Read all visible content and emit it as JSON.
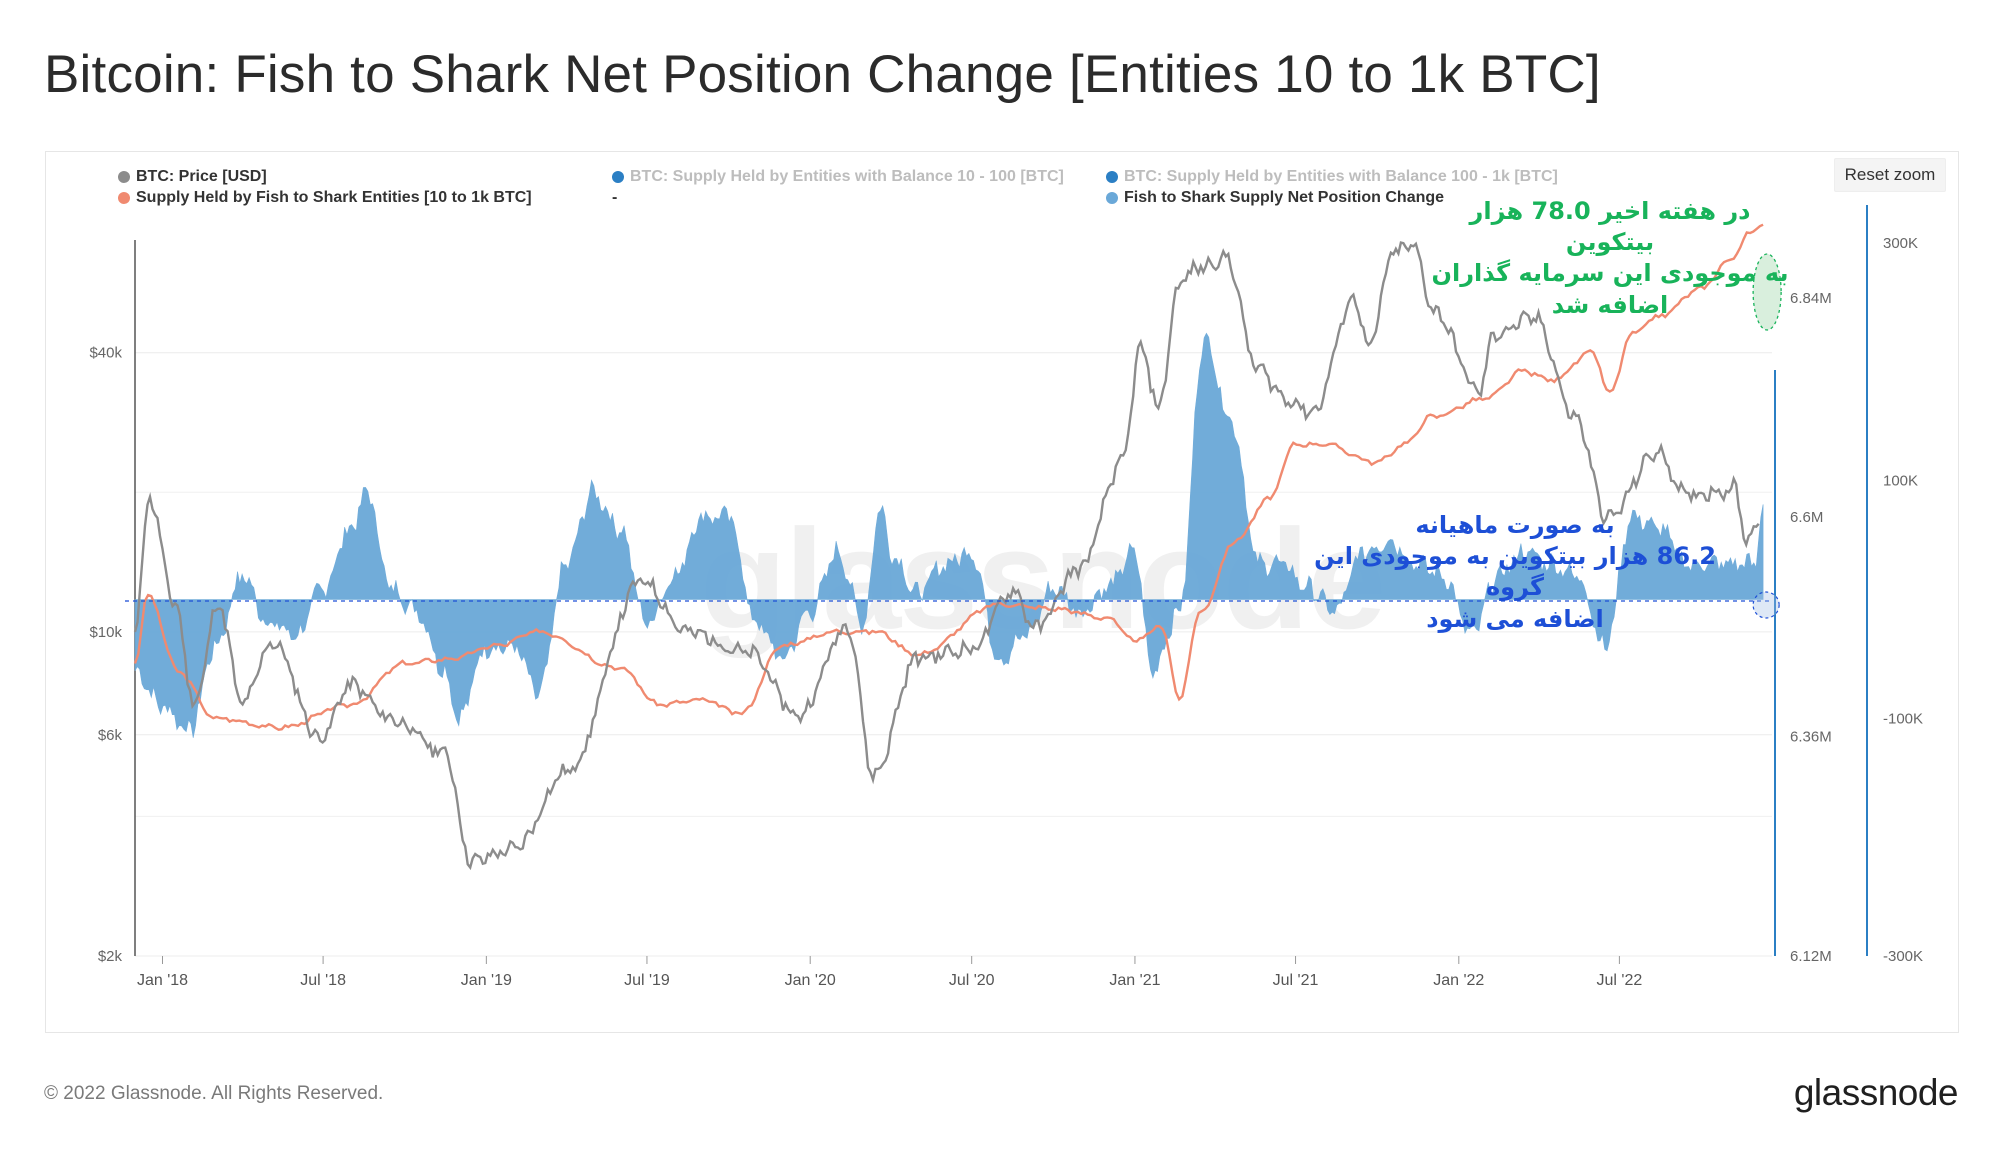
{
  "title": "Bitcoin: Fish to Shark Net Position Change [Entities 10 to 1k BTC]",
  "reset_zoom_label": "Reset zoom",
  "legend": [
    {
      "label": "BTC: Price [USD]",
      "color": "#8c8c8c",
      "dim": false
    },
    {
      "label": "BTC: Supply Held by Entities with Balance 10 - 100 [BTC]",
      "color": "#2b7fc4",
      "dim": true
    },
    {
      "label": "BTC: Supply Held by Entities with Balance 100 - 1k [BTC]",
      "color": "#2b7fc4",
      "dim": true
    },
    {
      "label": "Supply Held by Fish to Shark Entities [10 to 1k BTC]",
      "color": "#f08a70",
      "dim": false
    },
    {
      "label": "-",
      "color": "",
      "dim": false
    },
    {
      "label": "Fish to Shark Supply Net Position Change",
      "color": "#6aa8d8",
      "dim": false
    }
  ],
  "watermark": "glassnode",
  "annotations": {
    "green": [
      "در هفته اخیر  78.0 هزار بیتکوین",
      "به موجودی این سرمایه گذاران",
      "اضافه شد"
    ],
    "blue": [
      "به صورت ماهیانه",
      "86.2 هزار بیتکوین به موجودی این گروه",
      "اضافه می شود"
    ]
  },
  "footer": {
    "copyright": "© 2022 Glassnode. All Rights Reserved.",
    "logo": "glassnode"
  },
  "chart_data": {
    "type": "line",
    "x_axis": {
      "ticks": [
        "Jan '18",
        "Jul '18",
        "Jan '19",
        "Jul '19",
        "Jan '20",
        "Jul '20",
        "Jan '21",
        "Jul '21",
        "Jan '22",
        "Jul '22"
      ],
      "range": [
        "2017-12-01",
        "2022-12-20"
      ]
    },
    "y_axis_left": {
      "label": "",
      "scale": "log",
      "ticks": [
        "$40k",
        "$10k",
        "$6k",
        "$2k"
      ],
      "range": [
        2000,
        70000
      ]
    },
    "y_axis_right1": {
      "label": "",
      "ticks": [
        "6.84M",
        "6.6M",
        "6.36M",
        "6.12M"
      ],
      "range": [
        6120000,
        6900000
      ]
    },
    "y_axis_right2": {
      "label": "",
      "ticks": [
        "300K",
        "100K",
        "-100K",
        "-300K"
      ],
      "range": [
        -300000,
        300000
      ]
    },
    "colors": {
      "price": "#8c8c8c",
      "supply": "#f08a70",
      "net_change": "#6aa8d8",
      "axis": "#2b7fc4"
    },
    "series": [
      {
        "name": "BTC: Price [USD]",
        "axis": "left",
        "x": [
          "2017-12-01",
          "2017-12-17",
          "2018-01-15",
          "2018-02-06",
          "2018-03-05",
          "2018-04-01",
          "2018-05-05",
          "2018-06-28",
          "2018-08-01",
          "2018-09-15",
          "2018-11-15",
          "2018-12-15",
          "2019-02-01",
          "2019-04-02",
          "2019-06-26",
          "2019-08-15",
          "2019-10-25",
          "2019-12-18",
          "2020-02-13",
          "2020-03-12",
          "2020-05-01",
          "2020-07-01",
          "2020-08-17",
          "2020-09-10",
          "2020-11-01",
          "2020-12-17",
          "2021-01-08",
          "2021-01-27",
          "2021-02-21",
          "2021-03-13",
          "2021-04-14",
          "2021-05-19",
          "2021-06-22",
          "2021-07-20",
          "2021-09-06",
          "2021-09-21",
          "2021-10-20",
          "2021-11-10",
          "2021-12-05",
          "2022-01-24",
          "2022-02-10",
          "2022-03-28",
          "2022-05-12",
          "2022-06-18",
          "2022-08-13",
          "2022-09-15",
          "2022-10-25",
          "2022-11-08",
          "2022-11-21",
          "2022-12-05"
        ],
        "values": [
          10000,
          19500,
          11500,
          7000,
          11500,
          7000,
          9500,
          5900,
          7700,
          6500,
          5500,
          3200,
          3400,
          5000,
          12900,
          10000,
          9000,
          6600,
          10300,
          4900,
          8800,
          9200,
          12300,
          10200,
          13800,
          23000,
          41000,
          30500,
          57000,
          61000,
          64000,
          37000,
          31700,
          29800,
          52600,
          40800,
          66000,
          68000,
          49000,
          33000,
          44000,
          47500,
          29000,
          17600,
          24400,
          19700,
          20200,
          20500,
          15800,
          17100
        ]
      },
      {
        "name": "Supply Held by Fish to Shark Entities [10 to 1k BTC]",
        "axis": "right1",
        "x": [
          "2017-12-01",
          "2017-12-15",
          "2018-01-20",
          "2018-03-01",
          "2018-05-15",
          "2018-08-01",
          "2018-10-01",
          "2018-11-20",
          "2019-01-15",
          "2019-03-01",
          "2019-06-01",
          "2019-07-15",
          "2019-09-01",
          "2019-10-15",
          "2019-12-01",
          "2020-02-01",
          "2020-03-15",
          "2020-05-01",
          "2020-08-01",
          "2020-10-01",
          "2020-12-01",
          "2020-12-31",
          "2021-02-01",
          "2021-02-20",
          "2021-03-15",
          "2021-04-25",
          "2021-06-01",
          "2021-07-01",
          "2021-08-01",
          "2021-10-01",
          "2021-11-01",
          "2021-12-01",
          "2022-02-01",
          "2022-03-15",
          "2022-04-15",
          "2022-06-01",
          "2022-06-20",
          "2022-07-15",
          "2022-08-15",
          "2022-10-01",
          "2022-11-01",
          "2022-11-25",
          "2022-12-10"
        ],
        "values": [
          6440000,
          6515000,
          6430000,
          6380000,
          6370000,
          6395000,
          6440000,
          6445000,
          6460000,
          6475000,
          6435000,
          6395000,
          6400000,
          6385000,
          6460000,
          6475000,
          6475000,
          6450000,
          6505000,
          6500000,
          6490000,
          6465000,
          6480000,
          6400000,
          6495000,
          6575000,
          6620000,
          6680000,
          6680000,
          6660000,
          6680000,
          6710000,
          6730000,
          6760000,
          6750000,
          6780000,
          6735000,
          6800000,
          6820000,
          6850000,
          6880000,
          6910000,
          6920000
        ]
      },
      {
        "name": "Fish to Shark Supply Net Position Change",
        "axis": "right2",
        "x": [
          "2017-12-01",
          "2018-01-01",
          "2018-02-01",
          "2018-03-01",
          "2018-04-01",
          "2018-05-01",
          "2018-06-01",
          "2018-07-01",
          "2018-08-01",
          "2018-08-20",
          "2018-09-15",
          "2018-10-15",
          "2018-11-15",
          "2018-12-01",
          "2019-01-01",
          "2019-02-01",
          "2019-03-01",
          "2019-04-01",
          "2019-05-01",
          "2019-06-01",
          "2019-07-01",
          "2019-08-01",
          "2019-09-01",
          "2019-10-01",
          "2019-11-01",
          "2019-12-01",
          "2020-01-01",
          "2020-02-01",
          "2020-03-01",
          "2020-03-20",
          "2020-04-01",
          "2020-05-01",
          "2020-06-01",
          "2020-07-01",
          "2020-08-01",
          "2020-09-01",
          "2020-10-01",
          "2020-11-01",
          "2020-12-01",
          "2021-01-01",
          "2021-01-20",
          "2021-02-20",
          "2021-03-20",
          "2021-04-20",
          "2021-05-20",
          "2021-06-15",
          "2021-07-15",
          "2021-08-15",
          "2021-09-15",
          "2021-10-15",
          "2021-11-15",
          "2021-12-15",
          "2022-01-15",
          "2022-02-15",
          "2022-03-15",
          "2022-04-15",
          "2022-05-15",
          "2022-06-15",
          "2022-07-15",
          "2022-08-15",
          "2022-09-15",
          "2022-10-15",
          "2022-11-15",
          "2022-12-01",
          "2022-12-10"
        ],
        "values": [
          -60000,
          -90000,
          -110000,
          -40000,
          20000,
          -20000,
          -30000,
          10000,
          60000,
          90000,
          10000,
          -10000,
          -60000,
          -100000,
          -40000,
          -40000,
          -80000,
          30000,
          90000,
          60000,
          -20000,
          20000,
          70000,
          70000,
          -20000,
          -50000,
          -10000,
          40000,
          -20000,
          80000,
          40000,
          5000,
          30000,
          40000,
          -50000,
          -30000,
          10000,
          -10000,
          10000,
          40000,
          -60000,
          -10000,
          220000,
          150000,
          30000,
          30000,
          10000,
          -10000,
          40000,
          50000,
          30000,
          20000,
          -30000,
          20000,
          40000,
          30000,
          20000,
          -40000,
          70000,
          60000,
          30000,
          30000,
          30000,
          30000,
          80000
        ]
      }
    ]
  }
}
